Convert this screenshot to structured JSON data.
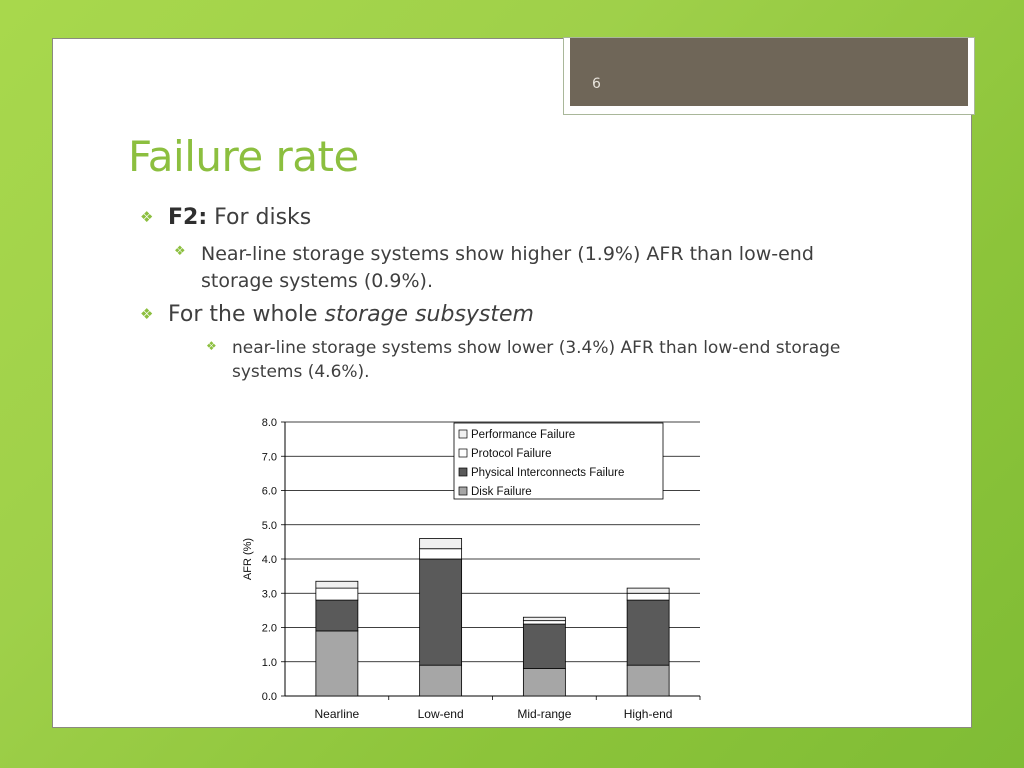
{
  "slide": {
    "page_number": "6",
    "title": "Failure rate"
  },
  "bullets": [
    {
      "level": 1,
      "prefix": "F2:",
      "text": "For disks"
    },
    {
      "level": 2,
      "text": "Near-line storage systems show higher (1.9%) AFR than low-end storage systems (0.9%)."
    },
    {
      "level": 1,
      "text": "For the whole ",
      "emphasis": "storage subsystem"
    },
    {
      "level": 3,
      "text": "near-line storage systems show lower (3.4%) AFR than low-end storage systems (4.6%)."
    }
  ],
  "chart_data": {
    "type": "bar",
    "stacked": true,
    "categories": [
      "Nearline",
      "Low-end",
      "Mid-range",
      "High-end"
    ],
    "series": [
      {
        "name": "Disk Failure",
        "color": "#a6a6a6",
        "values": [
          1.9,
          0.9,
          0.8,
          0.9
        ]
      },
      {
        "name": "Physical Interconnects Failure",
        "color": "#5a5a5a",
        "values": [
          0.9,
          3.1,
          1.3,
          1.9
        ]
      },
      {
        "name": "Protocol Failure",
        "color": "#ffffff",
        "values": [
          0.35,
          0.3,
          0.1,
          0.2
        ]
      },
      {
        "name": "Performance Failure",
        "color": "#f0f0f0",
        "values": [
          0.2,
          0.3,
          0.1,
          0.15
        ]
      }
    ],
    "legend_order": [
      "Performance Failure",
      "Protocol Failure",
      "Physical Interconnects Failure",
      "Disk Failure"
    ],
    "ylabel": "AFR (%)",
    "ylim": [
      0,
      8
    ],
    "yticks": [
      "0.0",
      "1.0",
      "2.0",
      "3.0",
      "4.0",
      "5.0",
      "6.0",
      "7.0",
      "8.0"
    ],
    "grid": true,
    "legend_position": "top-right"
  }
}
